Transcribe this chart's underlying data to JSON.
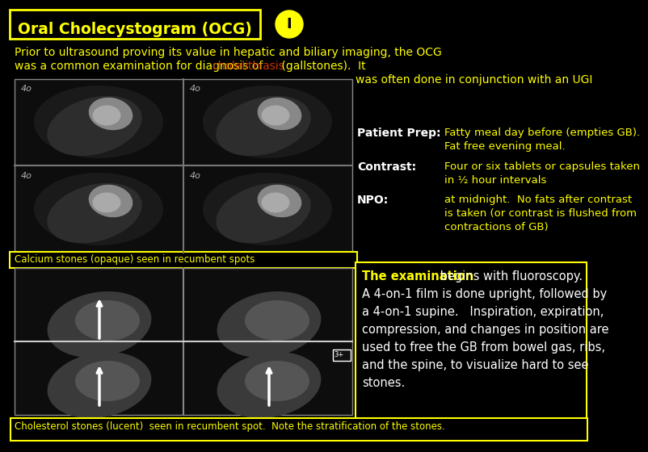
{
  "background_color": "#000000",
  "title_text": "Oral Cholecystogram (OCG)",
  "title_color": "#ffff00",
  "title_box_color": "#ffff00",
  "indicator_color": "#ffff00",
  "indicator_text": "I",
  "intro_line1": "Prior to ultrasound proving its value in hepatic and biliary imaging, the OCG",
  "intro_line2a": "was a common examination for diagnosis of ",
  "intro_line2b": "cholelithiasis",
  "intro_line2c": " (gallstones).  It",
  "intro_line3": "was often done in conjunction with an UGI",
  "intro_color": "#ffff00",
  "chol_color": "#cc3300",
  "label_color": "#ffffff",
  "yellow": "#ffff00",
  "label_prep": "Patient Prep:",
  "prep1": "Fatty meal day before (empties GB).",
  "prep2": "Fat free evening meal.",
  "label_contrast": "Contrast:",
  "contrast1": "Four or six tablets or capsules taken",
  "contrast2": "in ½ hour intervals",
  "label_npo": "NPO:",
  "npo1": "at midnight.  No fats after contrast",
  "npo2": "is taken (or contrast is flushed from",
  "npo3": "contractions of GB)",
  "caption_top": "Calcium stones (opaque) seen in recumbent spots",
  "exam_colored": "The examination",
  "exam_rest": " begins with fluoroscopy.",
  "exam2": "A 4-on-1 film is done upright, followed by",
  "exam3": "a 4-on-1 supine.   Inspiration, expiration,",
  "exam4": "compression, and changes in position are",
  "exam5": "used to free the GB from bowel gas, ribs,",
  "exam6": "and the spine, to visualize hard to see",
  "exam7": "stones.",
  "exam_color": "#ffffff",
  "caption_bottom": "Cholesterol stones (lucent)  seen in recumbent spot.  Note the stratification of the stones."
}
